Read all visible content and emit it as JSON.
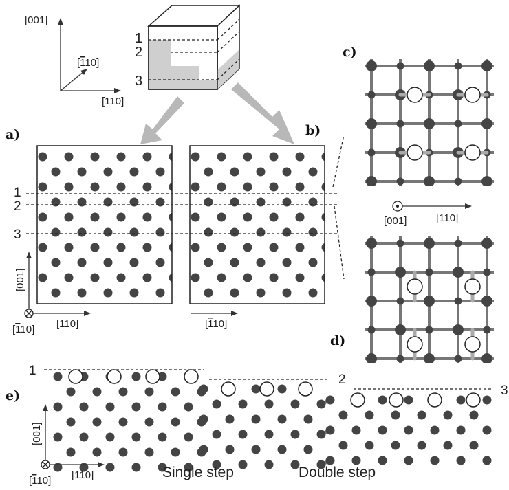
{
  "cube": {
    "axis_labels": {
      "vertical": "[001]",
      "diagonal": "[̅1̅̅ 10]",
      "horizontal": "[110]"
    },
    "level_labels": [
      "1",
      "2",
      "3"
    ]
  },
  "panel_a": {
    "label": "a)",
    "level_labels": [
      "1",
      "2",
      "3"
    ],
    "axis_vertical": "[001]",
    "axis_horizontal": "[110]",
    "axis_into_page": "[̅110]"
  },
  "panel_b": {
    "label": "b)",
    "axis_horizontal": "[̅110]"
  },
  "panel_c": {
    "label": "c)",
    "axis_out_of_page": "[001]",
    "axis_horizontal": "[110]"
  },
  "panel_d": {
    "label": "d)"
  },
  "panel_e": {
    "label": "e)",
    "level_labels": [
      "1",
      "2",
      "3"
    ],
    "axis_vertical": "[001]",
    "axis_horizontal": "[110]",
    "axis_into_page": "[̅110]",
    "step_labels": [
      "Single step",
      "Double step"
    ]
  },
  "colors": {
    "atom": "#444444",
    "bond": "#777777",
    "dimer_atom": "#ffffff",
    "arrow": "#b8b8b8",
    "shade": "#cfcfcf"
  }
}
